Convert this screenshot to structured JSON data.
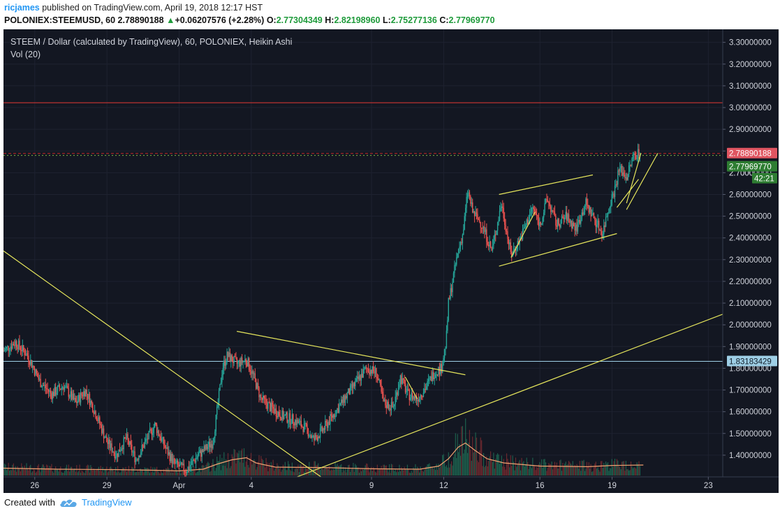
{
  "header": {
    "author": "ricjames",
    "published_text": " published on TradingView.com, April 19, 2018 12:17 HST",
    "symbol": "POLONIEX:STEEMUSD, 60",
    "last": "2.78890188",
    "change": "+0.06207576 (+2.28%)",
    "open_label": "O:",
    "open": "2.77304349",
    "high_label": "H:",
    "high": "2.82198960",
    "low_label": "L:",
    "low": "2.75277136",
    "close_label": "C:",
    "close": "2.77969770"
  },
  "chart_title": "STEEM / Dollar (calculated by TradingView), 60, POLONIEX, Heikin Ashi",
  "volume_legend": "Vol (20)",
  "footer": {
    "created_with": "Created with",
    "brand": "TradingView"
  },
  "colors": {
    "background": "#131722",
    "up": "#26a69a",
    "down": "#ef5350",
    "trendline": "#e6e65c",
    "volume_ma": "#f0a070",
    "resistance": "#e53935",
    "support_line": "#9ecfe6",
    "current_price": "#c62828",
    "close_price": "#2e7d32",
    "accent": "#2196f3"
  },
  "chart_data": {
    "type": "candlestick",
    "style": "Heikin Ashi",
    "ylim": [
      1.3,
      3.36
    ],
    "y_ticks": [
      "3.30000000",
      "3.20000000",
      "3.10000000",
      "3.00000000",
      "2.90000000",
      "2.80000000",
      "2.70000000",
      "2.60000000",
      "2.50000000",
      "2.40000000",
      "2.30000000",
      "2.20000000",
      "2.10000000",
      "2.00000000",
      "1.90000000",
      "1.80000000",
      "1.70000000",
      "1.60000000",
      "1.50000000",
      "1.40000000"
    ],
    "y_tick_values": [
      3.3,
      3.2,
      3.1,
      3.0,
      2.9,
      2.8,
      2.7,
      2.6,
      2.5,
      2.4,
      2.3,
      2.2,
      2.1,
      2.0,
      1.9,
      1.8,
      1.7,
      1.6,
      1.5,
      1.4
    ],
    "x_range_days": [
      -7.3,
      22.6
    ],
    "x_ticks": [
      {
        "label": "26",
        "day": -6
      },
      {
        "label": "29",
        "day": -3
      },
      {
        "label": "Apr",
        "day": 0
      },
      {
        "label": "4",
        "day": 3
      },
      {
        "label": "9",
        "day": 8
      },
      {
        "label": "12",
        "day": 11
      },
      {
        "label": "16",
        "day": 15
      },
      {
        "label": "19",
        "day": 18
      },
      {
        "label": "23",
        "day": 22
      },
      {
        "label": "26",
        "day": 25
      }
    ],
    "price_path": [
      [
        -7.3,
        1.88
      ],
      [
        -6.8,
        1.92
      ],
      [
        -6.3,
        1.86
      ],
      [
        -5.8,
        1.74
      ],
      [
        -5.3,
        1.68
      ],
      [
        -4.8,
        1.72
      ],
      [
        -4.3,
        1.64
      ],
      [
        -3.9,
        1.7
      ],
      [
        -3.5,
        1.6
      ],
      [
        -3.0,
        1.46
      ],
      [
        -2.6,
        1.4
      ],
      [
        -2.2,
        1.48
      ],
      [
        -1.8,
        1.38
      ],
      [
        -1.4,
        1.46
      ],
      [
        -1.0,
        1.54
      ],
      [
        -0.6,
        1.44
      ],
      [
        -0.2,
        1.36
      ],
      [
        0.3,
        1.33
      ],
      [
        0.8,
        1.4
      ],
      [
        1.4,
        1.46
      ],
      [
        1.6,
        1.62
      ],
      [
        1.8,
        1.8
      ],
      [
        2.0,
        1.86
      ],
      [
        2.4,
        1.82
      ],
      [
        2.8,
        1.84
      ],
      [
        3.1,
        1.76
      ],
      [
        3.4,
        1.66
      ],
      [
        3.8,
        1.62
      ],
      [
        4.3,
        1.58
      ],
      [
        4.8,
        1.56
      ],
      [
        5.3,
        1.52
      ],
      [
        5.6,
        1.47
      ],
      [
        6.0,
        1.52
      ],
      [
        6.5,
        1.6
      ],
      [
        7.0,
        1.68
      ],
      [
        7.4,
        1.74
      ],
      [
        7.8,
        1.8
      ],
      [
        8.2,
        1.78
      ],
      [
        8.5,
        1.64
      ],
      [
        8.9,
        1.62
      ],
      [
        9.2,
        1.76
      ],
      [
        9.5,
        1.68
      ],
      [
        9.9,
        1.66
      ],
      [
        10.3,
        1.72
      ],
      [
        10.6,
        1.78
      ],
      [
        10.9,
        1.8
      ],
      [
        11.1,
        1.92
      ],
      [
        11.2,
        2.1
      ],
      [
        11.4,
        2.22
      ],
      [
        11.6,
        2.34
      ],
      [
        11.8,
        2.42
      ],
      [
        12.0,
        2.62
      ],
      [
        12.2,
        2.52
      ],
      [
        12.6,
        2.46
      ],
      [
        13.0,
        2.34
      ],
      [
        13.4,
        2.56
      ],
      [
        13.8,
        2.32
      ],
      [
        14.2,
        2.4
      ],
      [
        14.7,
        2.54
      ],
      [
        15.0,
        2.46
      ],
      [
        15.3,
        2.58
      ],
      [
        15.7,
        2.46
      ],
      [
        16.1,
        2.5
      ],
      [
        16.5,
        2.44
      ],
      [
        16.9,
        2.56
      ],
      [
        17.3,
        2.48
      ],
      [
        17.6,
        2.42
      ],
      [
        17.9,
        2.56
      ],
      [
        18.1,
        2.62
      ],
      [
        18.3,
        2.72
      ],
      [
        18.6,
        2.68
      ],
      [
        18.9,
        2.78
      ],
      [
        19.2,
        2.8
      ]
    ],
    "volume_ma": [
      [
        -7.3,
        0.35
      ],
      [
        -5,
        0.3
      ],
      [
        -2.5,
        0.28
      ],
      [
        -1,
        0.25
      ],
      [
        0,
        0.22
      ],
      [
        1,
        0.3
      ],
      [
        1.6,
        0.55
      ],
      [
        2.2,
        0.75
      ],
      [
        2.8,
        0.85
      ],
      [
        3.2,
        0.6
      ],
      [
        4,
        0.4
      ],
      [
        6,
        0.38
      ],
      [
        8,
        0.32
      ],
      [
        10,
        0.3
      ],
      [
        10.8,
        0.45
      ],
      [
        11.2,
        0.8
      ],
      [
        11.6,
        1.35
      ],
      [
        11.9,
        1.55
      ],
      [
        12.3,
        1.2
      ],
      [
        12.8,
        0.8
      ],
      [
        13.5,
        0.6
      ],
      [
        15,
        0.45
      ],
      [
        17,
        0.42
      ],
      [
        18,
        0.48
      ],
      [
        19.3,
        0.5
      ]
    ],
    "volume_scale_max": 2.0,
    "trendlines": [
      {
        "name": "long-downtrend",
        "points": [
          [
            -7.3,
            2.34
          ],
          [
            5.9,
            1.3
          ]
        ]
      },
      {
        "name": "descending-resistance",
        "points": [
          [
            2.4,
            1.97
          ],
          [
            11.9,
            1.77
          ]
        ]
      },
      {
        "name": "long-uptrend",
        "points": [
          [
            4.9,
            1.3
          ],
          [
            23.1,
            2.07
          ]
        ]
      },
      {
        "name": "channel-upper",
        "points": [
          [
            13.3,
            2.6
          ],
          [
            17.2,
            2.69
          ]
        ]
      },
      {
        "name": "channel-lower",
        "points": [
          [
            13.3,
            2.27
          ],
          [
            18.2,
            2.42
          ]
        ]
      },
      {
        "name": "rise-1",
        "points": [
          [
            13.8,
            2.31
          ],
          [
            14.8,
            2.52
          ]
        ]
      },
      {
        "name": "rise-2",
        "points": [
          [
            18.2,
            2.54
          ],
          [
            19.1,
            2.67
          ]
        ]
      },
      {
        "name": "rise-3",
        "points": [
          [
            18.6,
            2.56
          ],
          [
            19.2,
            2.79
          ]
        ]
      },
      {
        "name": "final-uptrend",
        "points": [
          [
            18.6,
            2.53
          ],
          [
            19.9,
            2.79
          ]
        ]
      },
      {
        "name": "small-1",
        "points": [
          [
            9.4,
            1.76
          ],
          [
            9.9,
            1.66
          ]
        ]
      }
    ],
    "horizontal_lines": [
      {
        "name": "resistance",
        "price": 3.022,
        "color": "#e53935",
        "style": "solid"
      },
      {
        "name": "current-price",
        "price": 2.7889,
        "color": "#c62828",
        "style": "dashed"
      },
      {
        "name": "close-price",
        "price": 2.7797,
        "color": "#7cb342",
        "style": "dotted"
      },
      {
        "name": "support",
        "price": 1.8318,
        "color": "#9ecfe6",
        "style": "solid"
      }
    ],
    "price_labels": [
      {
        "name": "last-price-label",
        "text": "2.78890188",
        "price": 2.7889,
        "bg": "#e05561",
        "fg": "#ffffff",
        "offset": 0
      },
      {
        "name": "close-price-label",
        "text": "2.77969770",
        "price": 2.7797,
        "bg": "#2e7d32",
        "fg": "#ffffff",
        "offset": 16
      },
      {
        "name": "countdown-label",
        "text": "42:21",
        "price": 2.7797,
        "bg": "#2e7d32",
        "fg": "#ffffff",
        "offset": 33
      },
      {
        "name": "support-price-label",
        "text": "1.83183429",
        "price": 1.8318,
        "bg": "#9ecfe6",
        "fg": "#0e1a26",
        "offset": 0
      }
    ],
    "partial_tick": {
      "text": "2.7000",
      "price": 2.7
    }
  }
}
